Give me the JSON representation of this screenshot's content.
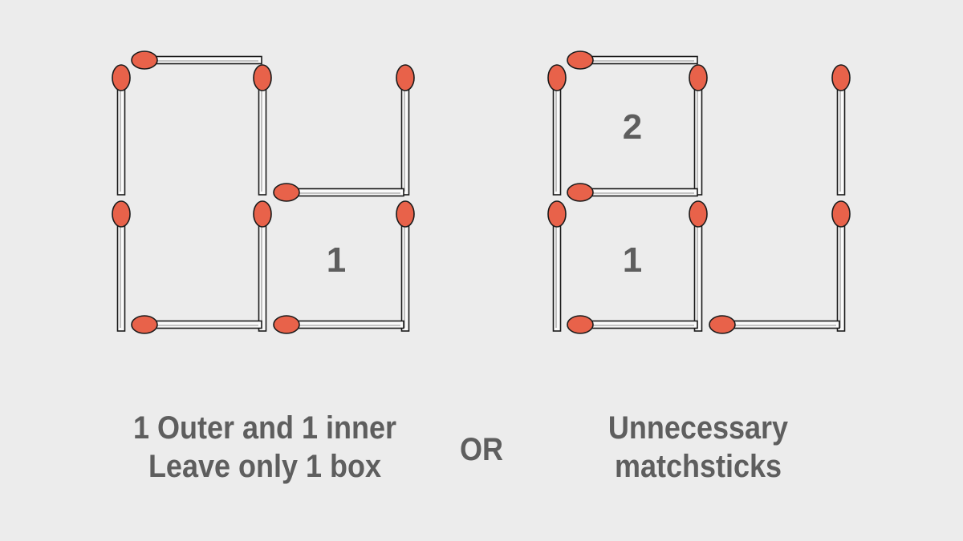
{
  "puzzle": {
    "left_figure": {
      "box_numbers": [
        "1"
      ]
    },
    "right_figure": {
      "box_numbers": [
        "2",
        "1"
      ]
    },
    "colors": {
      "background": "#ececec",
      "match_head": "#e8624a",
      "stick_outline": "#1a1a1a",
      "text": "#5e5e5e"
    }
  },
  "captions": {
    "left_line1": "1 Outer and 1 inner",
    "left_line2": "Leave only 1 box",
    "middle": "OR",
    "right_line1": "Unnecessary",
    "right_line2": "matchsticks"
  }
}
